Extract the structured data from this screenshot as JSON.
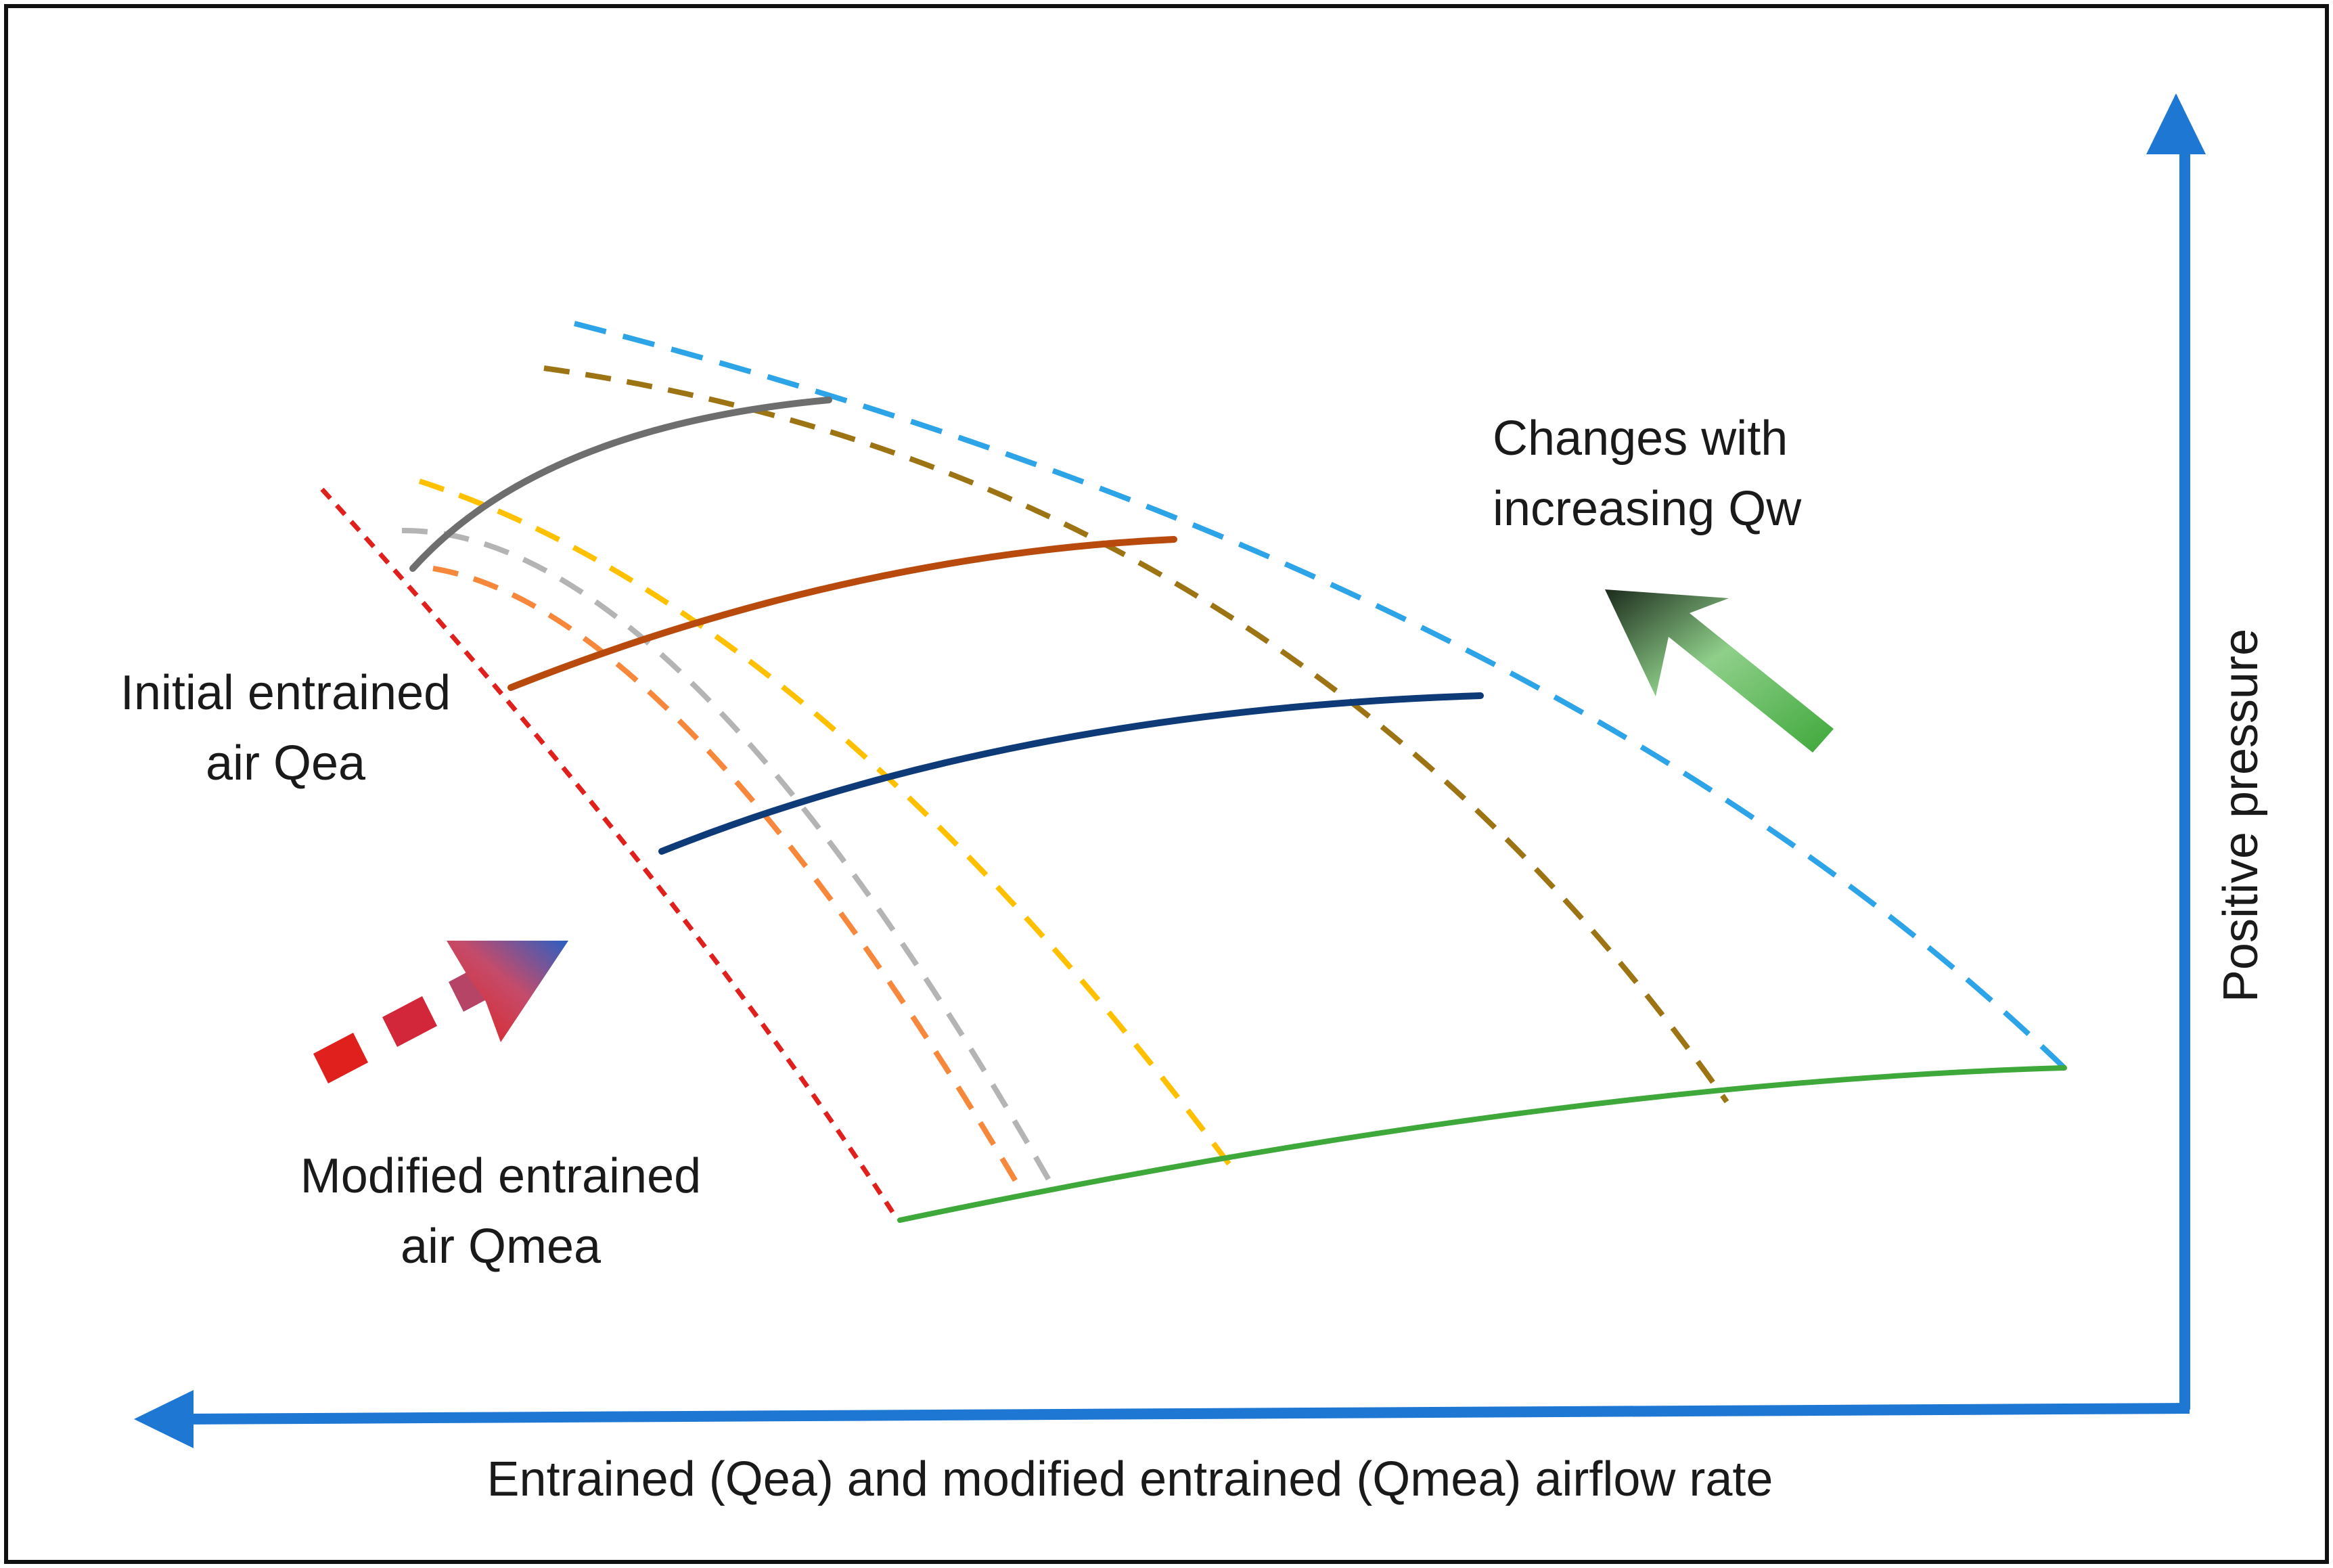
{
  "diagram": {
    "labels": {
      "x_axis": "Entrained (Qea) and modified entrained (Qmea) airflow rate",
      "y_axis": "Positive pressure",
      "initial_line1": "Initial entrained",
      "initial_line2": "air Qea",
      "modified_line1": "Modified entrained",
      "modified_line2": "air Qmea",
      "changes_line1": "Changes with",
      "changes_line2": "increasing Qw"
    },
    "colors": {
      "axis": "#1f77d4",
      "red_boundary": "#e0201c",
      "orange": "#f7873a",
      "gray_dashed": "#b4b4b4",
      "yellow": "#ffc000",
      "dark_gold": "#9c7413",
      "light_blue": "#2ea4e8",
      "green": "#3ea83a",
      "gray_solid": "#6e6e6e",
      "rust": "#b84a0e",
      "navy": "#0e3a78"
    },
    "icons": {
      "qw_arrow": "green-gradient-arrow-icon",
      "qmea_arrow": "red-to-blue-dashed-arrow-icon"
    }
  }
}
